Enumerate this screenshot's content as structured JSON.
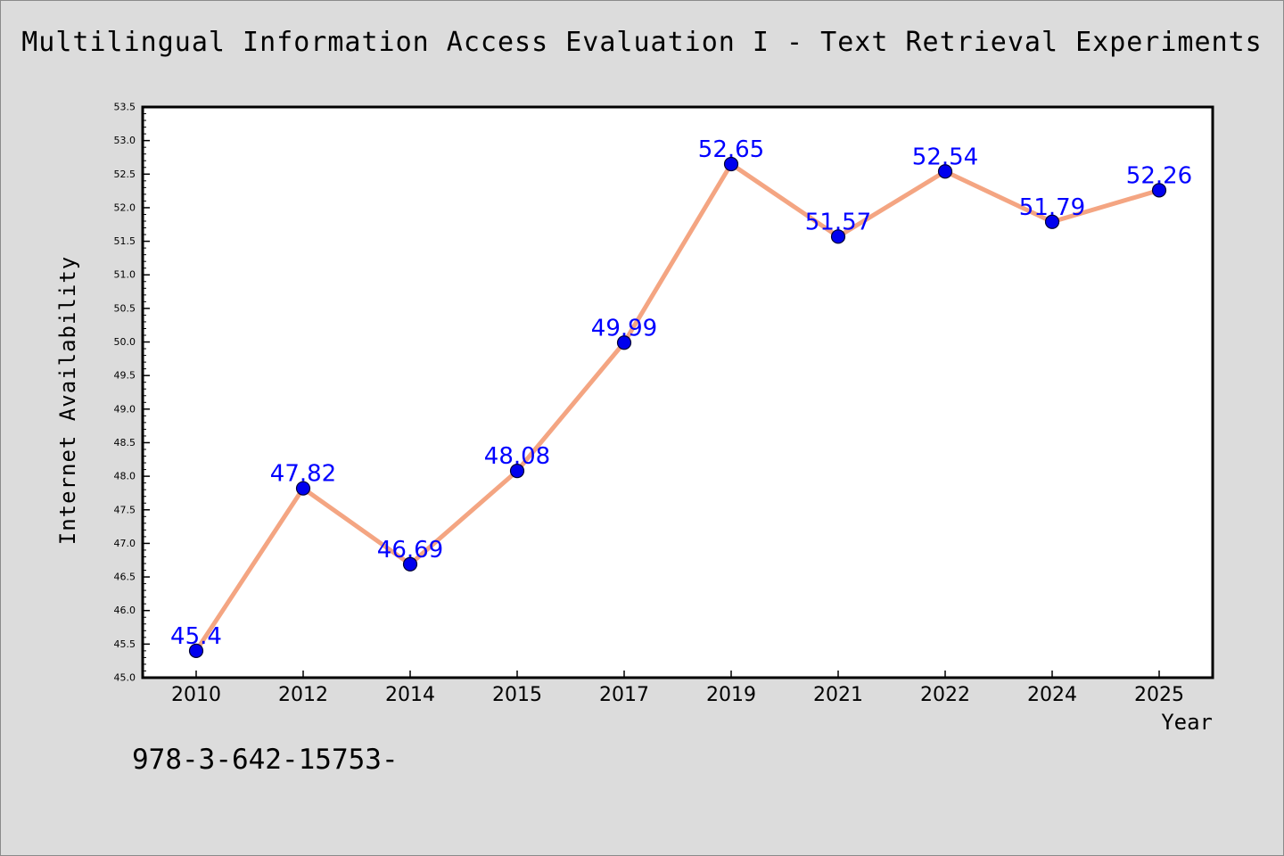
{
  "chart_data": {
    "type": "line",
    "title": "Multilingual Information Access Evaluation I - Text Retrieval Experiments",
    "xlabel": "Year",
    "ylabel": "Internet Availability",
    "categories": [
      "2010",
      "2012",
      "2014",
      "2015",
      "2017",
      "2019",
      "2021",
      "2022",
      "2024",
      "2025"
    ],
    "series": [
      {
        "values": [
          45.4,
          47.82,
          46.69,
          48.08,
          49.99,
          52.65,
          51.57,
          52.54,
          51.79,
          52.26
        ],
        "labels": [
          "45.4",
          "47.82",
          "46.69",
          "48.08",
          "49.99",
          "52.65",
          "51.57",
          "52.54",
          "51.79",
          "52.26"
        ]
      }
    ],
    "ylim": [
      45.0,
      53.5
    ],
    "yticks": [
      "45.0",
      "45.5",
      "46.0",
      "46.5",
      "47.0",
      "47.5",
      "48.0",
      "48.5",
      "49.0",
      "49.5",
      "50.0",
      "50.5",
      "51.0",
      "51.5",
      "52.0",
      "52.5",
      "53.0",
      "53.5"
    ],
    "grid": false,
    "colors": {
      "line": "#f4a582",
      "marker_fill": "#0000ee",
      "marker_edge": "#000033",
      "data_label": "#0000ff",
      "background": "#dcdcdc",
      "plot_background": "#ffffff"
    }
  },
  "footer_text": "978-3-642-15753-"
}
